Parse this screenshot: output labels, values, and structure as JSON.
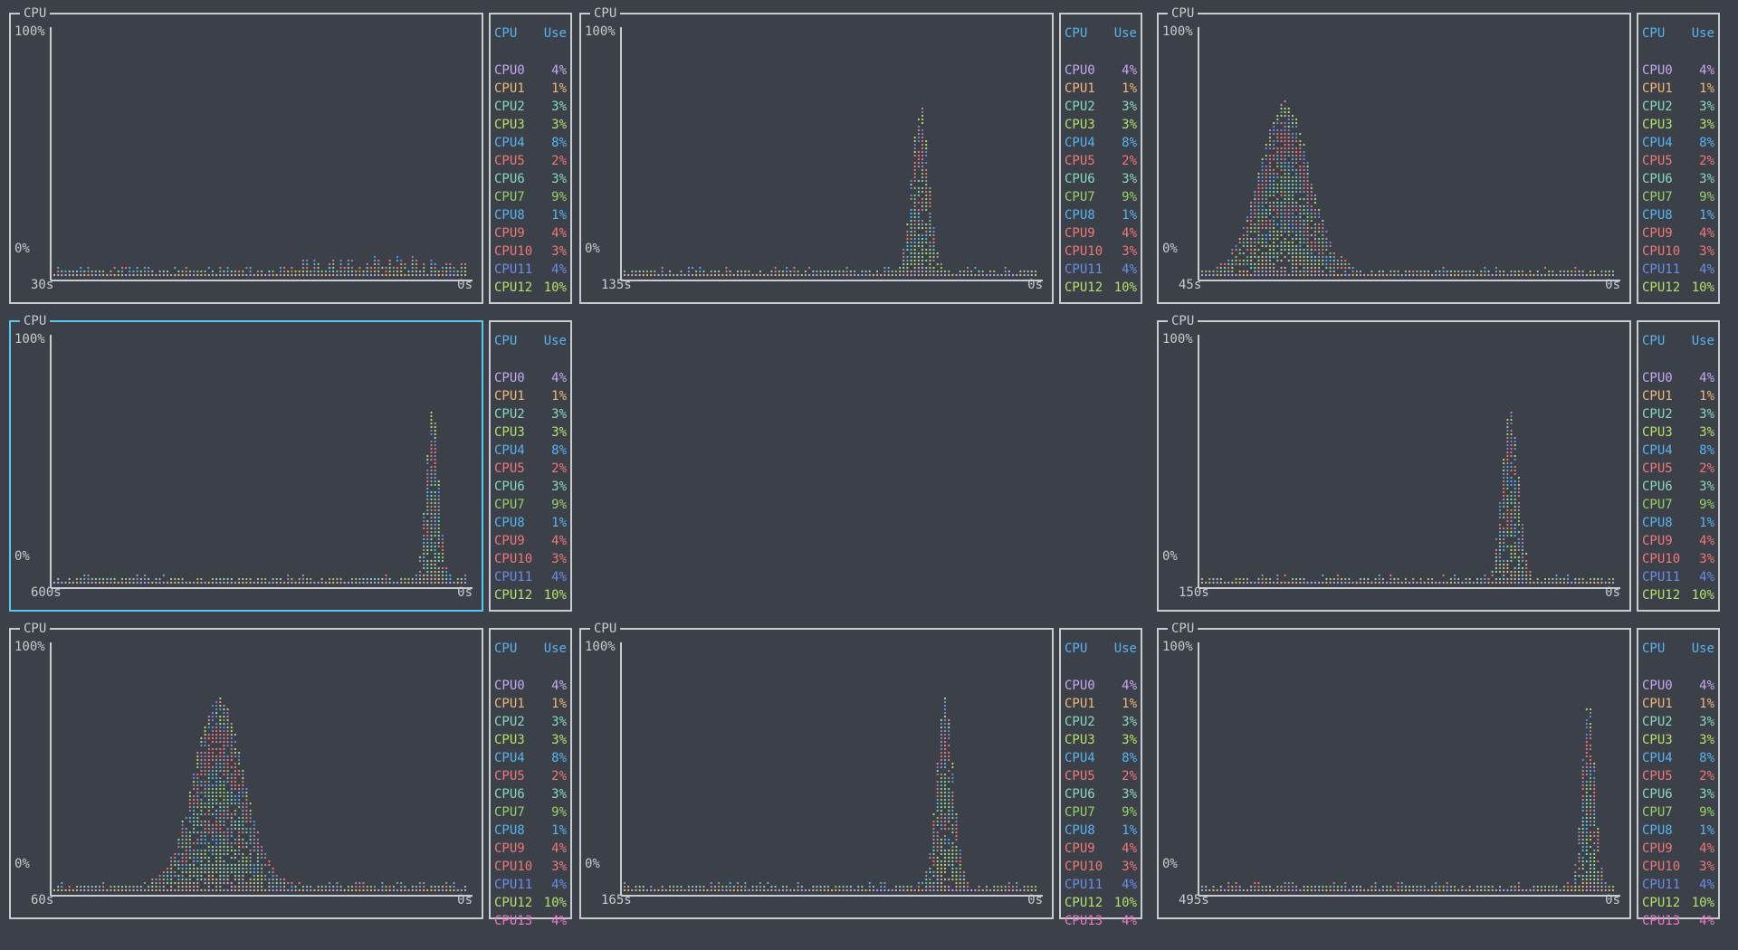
{
  "colors": {
    "background": "#3c4049",
    "border": "#c8cbd0",
    "selected_border": "#58c8f0",
    "header": "#58b4f0",
    "cpu": [
      "#c6a8f0",
      "#f0b878",
      "#88d8c0",
      "#b4e068",
      "#58b4f0",
      "#f07878",
      "#88d8c0",
      "#98d068",
      "#58b4f0",
      "#f07878",
      "#f07878",
      "#6a8ee8",
      "#b4e068",
      "#f078c8"
    ]
  },
  "labels": {
    "title": "CPU",
    "y_top": "100%",
    "y_bottom": "0%",
    "x_right": "0s",
    "legend_cpu": "CPU",
    "legend_use": "Use"
  },
  "cpu_rows_a": [
    {
      "name": "CPU0",
      "use": "4%"
    },
    {
      "name": "CPU1",
      "use": "1%"
    },
    {
      "name": "CPU2",
      "use": "3%"
    },
    {
      "name": "CPU3",
      "use": "3%"
    },
    {
      "name": "CPU4",
      "use": "8%"
    },
    {
      "name": "CPU5",
      "use": "2%"
    },
    {
      "name": "CPU6",
      "use": "3%"
    },
    {
      "name": "CPU7",
      "use": "9%"
    },
    {
      "name": "CPU8",
      "use": "1%"
    },
    {
      "name": "CPU9",
      "use": "4%"
    },
    {
      "name": "CPU10",
      "use": "3%"
    },
    {
      "name": "CPU11",
      "use": "4%"
    },
    {
      "name": "CPU12",
      "use": "10%"
    }
  ],
  "cpu_rows_b": [
    {
      "name": "CPU0",
      "use": "4%"
    },
    {
      "name": "CPU1",
      "use": "1%"
    },
    {
      "name": "CPU2",
      "use": "3%"
    },
    {
      "name": "CPU3",
      "use": "3%"
    },
    {
      "name": "CPU4",
      "use": "8%"
    },
    {
      "name": "CPU5",
      "use": "2%"
    },
    {
      "name": "CPU6",
      "use": "3%"
    },
    {
      "name": "CPU7",
      "use": "9%"
    },
    {
      "name": "CPU8",
      "use": "1%"
    },
    {
      "name": "CPU9",
      "use": "4%"
    },
    {
      "name": "CPU10",
      "use": "3%"
    },
    {
      "name": "CPU11",
      "use": "4%"
    },
    {
      "name": "CPU12",
      "use": "10%"
    },
    {
      "name": "CPU13",
      "use": "4%"
    }
  ],
  "panels": [
    {
      "id": "p1",
      "time_window": "30s",
      "selected": false,
      "rows": "a",
      "spike_pct": 12,
      "spike_pos": 0.85,
      "spike_width": 0.03
    },
    {
      "id": "p2",
      "time_window": "135s",
      "selected": false,
      "rows": "a",
      "spike_pct": 70,
      "spike_pos": 0.72,
      "spike_width": 0.02
    },
    {
      "id": "p3",
      "time_window": "45s",
      "selected": false,
      "rows": "a",
      "spike_pct": 70,
      "spike_pos": 0.2,
      "spike_width": 0.06
    },
    {
      "id": "p4",
      "time_window": "600s",
      "selected": true,
      "rows": "a",
      "spike_pct": 70,
      "spike_pos": 0.92,
      "spike_width": 0.015
    },
    {
      "id": "p6",
      "time_window": "150s",
      "selected": false,
      "rows": "a",
      "spike_pct": 70,
      "spike_pos": 0.75,
      "spike_width": 0.02
    },
    {
      "id": "p7",
      "time_window": "60s",
      "selected": false,
      "rows": "b",
      "spike_pct": 78,
      "spike_pos": 0.4,
      "spike_width": 0.06
    },
    {
      "id": "p8",
      "time_window": "165s",
      "selected": false,
      "rows": "b",
      "spike_pct": 78,
      "spike_pos": 0.78,
      "spike_width": 0.02
    },
    {
      "id": "p9",
      "time_window": "495s",
      "selected": false,
      "rows": "b",
      "spike_pct": 78,
      "spike_pos": 0.94,
      "spike_width": 0.015
    }
  ]
}
